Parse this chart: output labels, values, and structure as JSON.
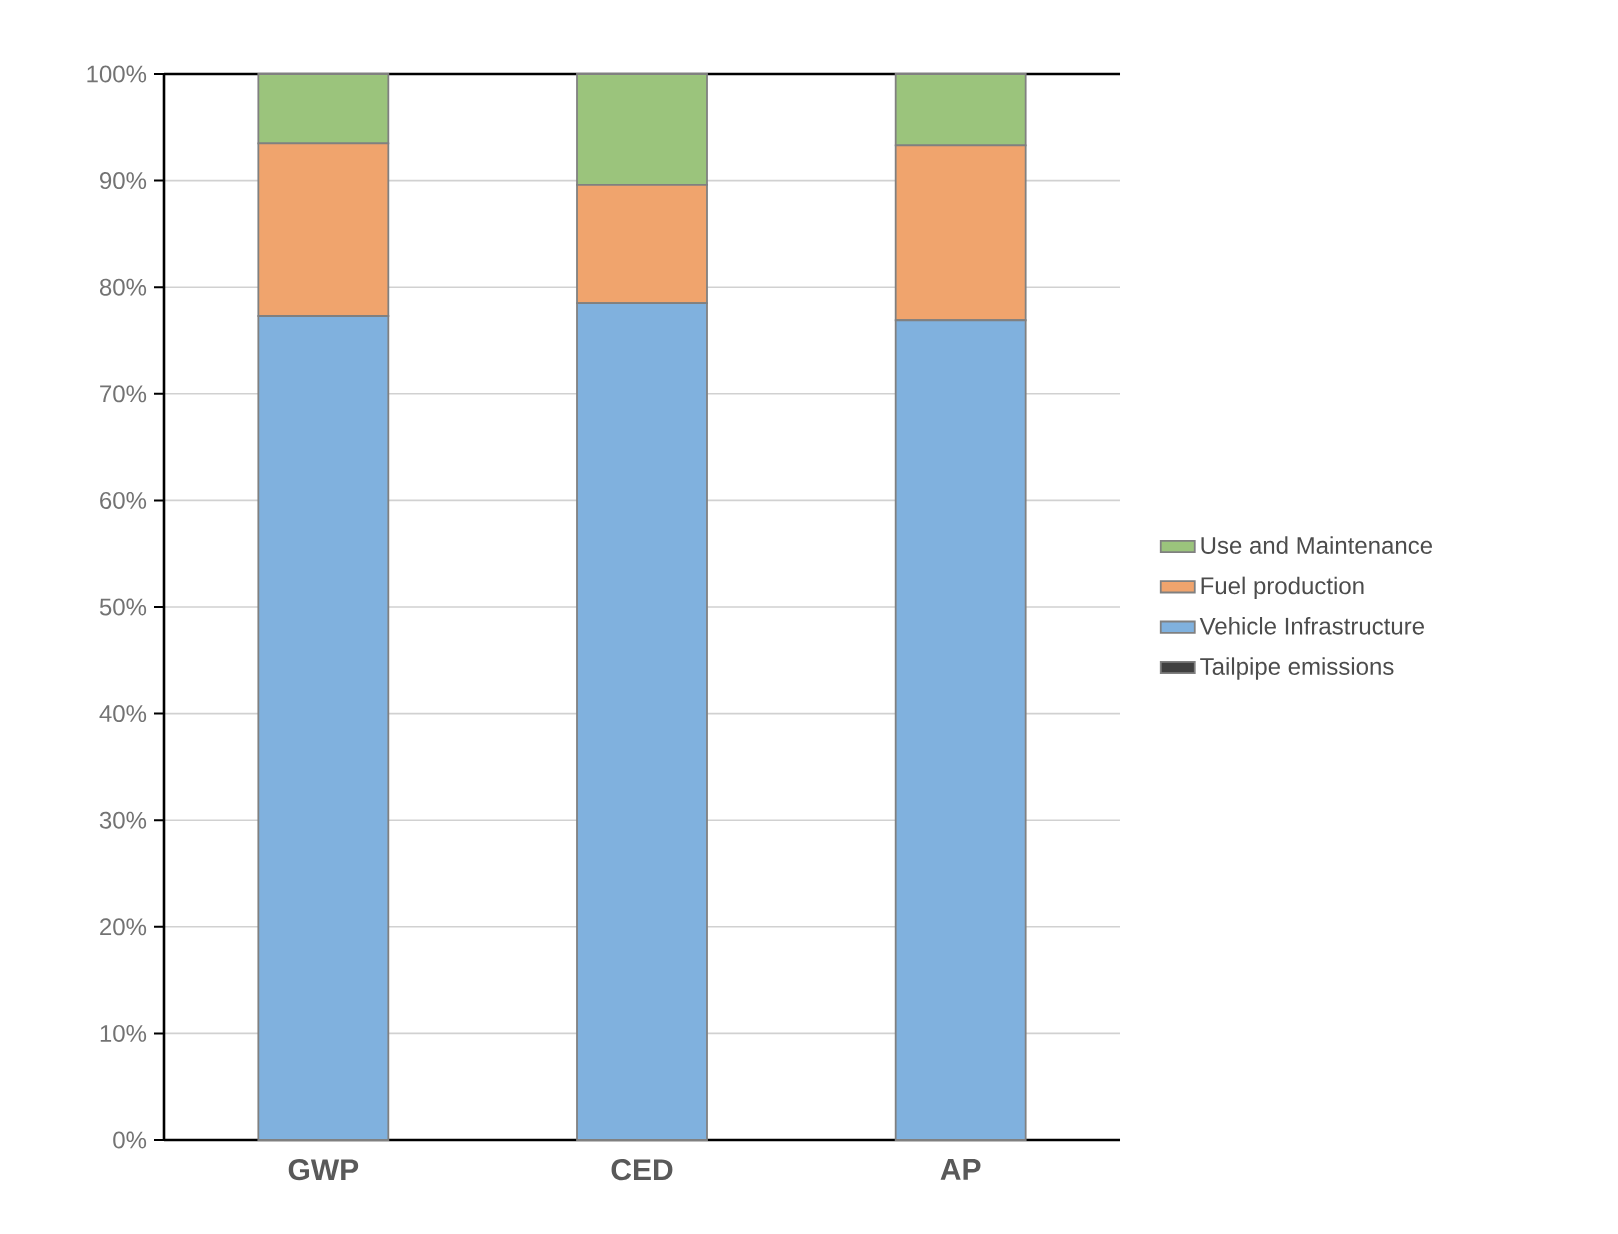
{
  "chart_data": {
    "type": "bar",
    "stacked": true,
    "categories": [
      "GWP",
      "CED",
      "AP"
    ],
    "series": [
      {
        "name": "Tailpipe emissions",
        "color": "#404040",
        "values": [
          0,
          0,
          0
        ]
      },
      {
        "name": "Vehicle Infrastructure",
        "color": "#80b1de",
        "values": [
          77.3,
          78.5,
          76.9
        ]
      },
      {
        "name": "Fuel production",
        "color": "#f0a46d",
        "values": [
          16.2,
          11.1,
          16.4
        ]
      },
      {
        "name": "Use and Maintenance",
        "color": "#9bc47c",
        "values": [
          6.5,
          10.4,
          6.7
        ]
      }
    ],
    "ylim": [
      0,
      100
    ],
    "yticks": [
      {
        "value": 0,
        "label": "0%"
      },
      {
        "value": 10,
        "label": "10%"
      },
      {
        "value": 20,
        "label": "20%"
      },
      {
        "value": 30,
        "label": "30%"
      },
      {
        "value": 40,
        "label": "40%"
      },
      {
        "value": 50,
        "label": "50%"
      },
      {
        "value": 60,
        "label": "60%"
      },
      {
        "value": 70,
        "label": "70%"
      },
      {
        "value": 80,
        "label": "80%"
      },
      {
        "value": 90,
        "label": "90%"
      },
      {
        "value": 100,
        "label": "100%"
      }
    ],
    "grid": "y",
    "legend": "right"
  }
}
